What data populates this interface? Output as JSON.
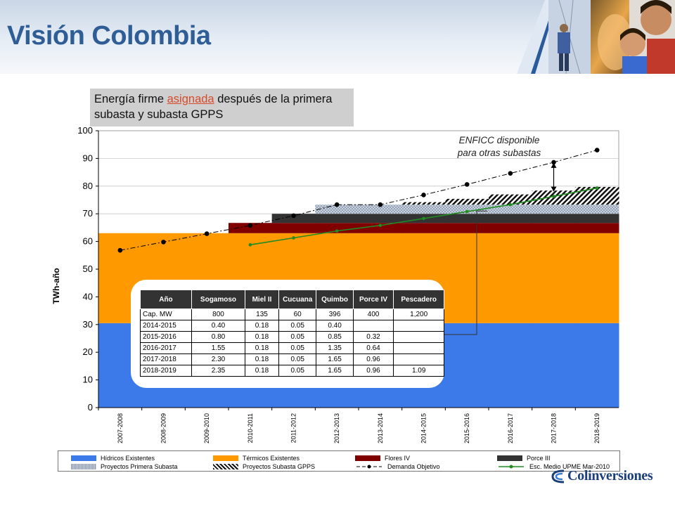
{
  "header": {
    "title": "Visión Colombia"
  },
  "subtitle": {
    "part1": "Energía firme ",
    "highlight": "asignada",
    "part2": " después de la primera subasta y subasta GPPS"
  },
  "annotation": {
    "line1": "ENFICC disponible",
    "line2": "para otras subastas"
  },
  "colors": {
    "hidricos": "#3b7ae8",
    "termicos": "#ff9900",
    "flores": "#800000",
    "porce3": "#333333",
    "primera_subasta": "#b8c4d4",
    "gpps": "#1a1a1a",
    "demanda": "#000000",
    "upme": "#228b22"
  },
  "chart_data": {
    "type": "area",
    "ylabel": "TWh-año",
    "ylim": [
      0,
      100
    ],
    "yticks": [
      0,
      10,
      20,
      30,
      40,
      50,
      60,
      70,
      80,
      90,
      100
    ],
    "categories": [
      "2007-2008",
      "2008-2009",
      "2009-2010",
      "2010-2011",
      "2011-2012",
      "2012-2013",
      "2013-2014",
      "2014-2015",
      "2015-2016",
      "2016-2017",
      "2017-2018",
      "2018-2019"
    ],
    "series": [
      {
        "name": "Hídricos Existentes",
        "kind": "stack",
        "values": [
          30.5,
          30.5,
          30.5,
          30.5,
          30.5,
          30.5,
          30.5,
          30.5,
          30.5,
          30.5,
          30.5,
          30.5
        ]
      },
      {
        "name": "Térmicos Existentes",
        "kind": "stack",
        "values": [
          32.5,
          32.5,
          32.5,
          32.5,
          32.5,
          32.5,
          32.5,
          32.5,
          32.5,
          32.5,
          32.5,
          32.5
        ]
      },
      {
        "name": "Flores IV",
        "kind": "stack",
        "values": [
          0,
          0,
          0,
          3.7,
          3.7,
          3.7,
          3.7,
          3.7,
          3.7,
          3.7,
          3.7,
          3.7
        ]
      },
      {
        "name": "Porce III",
        "kind": "stack",
        "values": [
          0,
          0,
          0,
          0,
          3.3,
          3.3,
          3.3,
          3.3,
          3.3,
          3.3,
          3.3,
          3.3
        ]
      },
      {
        "name": "Proyectos Primera Subasta",
        "kind": "stack",
        "values": [
          0,
          0,
          0,
          0,
          0,
          3.3,
          3.3,
          3.3,
          3.3,
          3.3,
          3.3,
          3.3
        ]
      },
      {
        "name": "Proyectos Subasta GPPS",
        "kind": "stack",
        "values": [
          0,
          0,
          0,
          0,
          0,
          0,
          0,
          0.9,
          2.1,
          3.7,
          5.1,
          6.4
        ]
      },
      {
        "name": "Demanda Objetivo",
        "kind": "line",
        "values": [
          56.8,
          59.8,
          62.8,
          65.8,
          69.3,
          73.3,
          73.3,
          76.8,
          80.6,
          84.6,
          88.6,
          93
        ]
      },
      {
        "name": "Esc. Medio UPME Mar-2010",
        "kind": "line",
        "values": [
          null,
          null,
          null,
          58.8,
          61.3,
          63.8,
          65.8,
          68.3,
          70.8,
          73.3,
          76.3,
          79.3
        ]
      }
    ],
    "table": {
      "headers": [
        "Año",
        "Sogamoso",
        "Miel II",
        "Cucuana",
        "Quimbo",
        "Porce IV",
        "Pescadero"
      ],
      "rows": [
        [
          "Cap. MW",
          "800",
          "135",
          "60",
          "396",
          "400",
          "1,200"
        ],
        [
          "2014-2015",
          "0.40",
          "0.18",
          "0.05",
          "0.40",
          "",
          ""
        ],
        [
          "2015-2016",
          "0.80",
          "0.18",
          "0.05",
          "0.85",
          "0.32",
          ""
        ],
        [
          "2016-2017",
          "1.55",
          "0.18",
          "0.05",
          "1.35",
          "0.64",
          ""
        ],
        [
          "2017-2018",
          "2.30",
          "0.18",
          "0.05",
          "1.65",
          "0.96",
          ""
        ],
        [
          "2018-2019",
          "2.35",
          "0.18",
          "0.05",
          "1.65",
          "0.96",
          "1.09"
        ]
      ]
    }
  },
  "legend": [
    {
      "label": "Hídricos Existentes"
    },
    {
      "label": "Térmicos Existentes"
    },
    {
      "label": "Flores IV"
    },
    {
      "label": "Porce III"
    },
    {
      "label": "Proyectos Primera Subasta"
    },
    {
      "label": "Proyectos Subasta GPPS"
    },
    {
      "label": "Demanda Objetivo"
    },
    {
      "label": "Esc. Medio UPME Mar-2010"
    }
  ],
  "logo": {
    "text": "Colinversiones"
  }
}
